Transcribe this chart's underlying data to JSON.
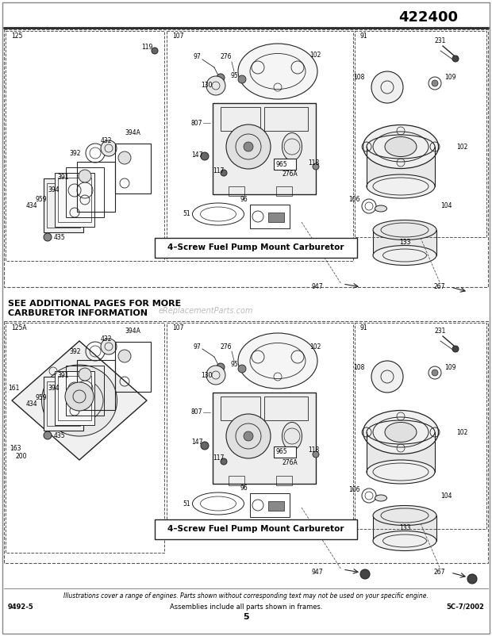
{
  "title": "422400",
  "page_number": "5",
  "left_label": "9492-5",
  "center_label": "Assemblies include all parts shown in frames.",
  "right_label": "5C-7/2002",
  "footer_italic": "Illustrations cover a range of engines. Parts shown without corresponding text may not be used on your specific engine.",
  "carburetor_label": "4–Screw Fuel Pump Mount Carburetor",
  "see_more_text": "SEE ADDITIONAL PAGES FOR MORE\nCARBURETOR INFORMATION",
  "watermark": "eReplacementParts.com",
  "bg_color": "#ffffff",
  "lc": "#222222",
  "gray1": "#aaaaaa",
  "gray2": "#cccccc",
  "gray3": "#888888"
}
